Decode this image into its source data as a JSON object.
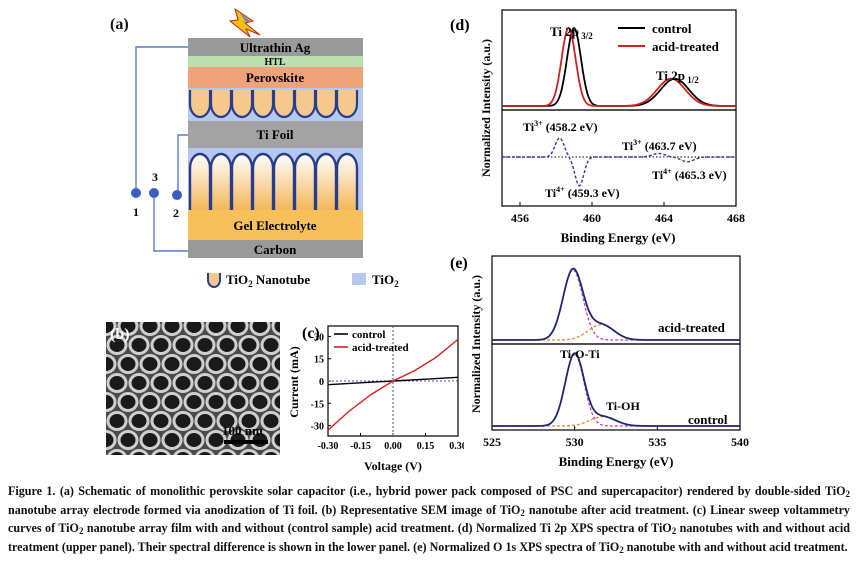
{
  "panel_a": {
    "label": "(a)",
    "layers": {
      "ag": "Ultrathin Ag",
      "htl": "HTL",
      "perovskite": "Perovskite",
      "ti_foil": "Ti Foil",
      "gel": "Gel Electrolyte",
      "carbon": "Carbon"
    },
    "terminals": [
      "1",
      "3",
      "2"
    ],
    "legend": {
      "nanotube": "TiO2 Nanotube",
      "tio2": "TiO2"
    }
  },
  "panel_b": {
    "label": "(b)",
    "scalebar": "100 nm"
  },
  "panel_c": {
    "label": "(c)"
  },
  "panel_d": {
    "label": "(d)"
  },
  "panel_e": {
    "label": "(e)"
  },
  "chart_data": [
    {
      "type": "line",
      "panel": "c",
      "xlabel": "Voltage (V)",
      "ylabel": "Current (mA)",
      "xlim": [
        -0.3,
        0.3
      ],
      "ylim": [
        -37,
        37
      ],
      "xticks": [
        "-0.30",
        "-0.15",
        "0.00",
        "0.15",
        "0.30"
      ],
      "yticks": [
        "30",
        "15",
        "0",
        "-15",
        "-30"
      ],
      "legend": [
        "control",
        "acid-treated"
      ],
      "series": [
        {
          "name": "control",
          "color": "#000000",
          "x": [
            -0.3,
            -0.15,
            0.0,
            0.15,
            0.3
          ],
          "y": [
            -2.5,
            -1.2,
            0,
            1.2,
            2.5
          ]
        },
        {
          "name": "acid-treated",
          "color": "#cc2222",
          "x": [
            -0.3,
            -0.2,
            -0.1,
            0.0,
            0.1,
            0.2,
            0.3
          ],
          "y": [
            -33,
            -20,
            -9,
            0,
            7,
            16,
            28
          ]
        }
      ]
    },
    {
      "type": "line",
      "panel": "d",
      "xlabel": "Binding Energy (eV)",
      "ylabel": "Normalized Intensity (a.u.)",
      "xlim": [
        455,
        468
      ],
      "xticks": [
        "456",
        "460",
        "464",
        "468"
      ],
      "legend": [
        "control",
        "acid-treated"
      ],
      "annotations": [
        "Ti 2p 3/2",
        "Ti 2p 1/2",
        "Ti3+ (458.2 eV)",
        "Ti4+ (459.3 eV)",
        "Ti3+ (463.7 eV)",
        "Ti4+ (465.3 eV)"
      ],
      "series": [
        {
          "name": "control",
          "color": "#000000",
          "peaks": [
            [
              459.0,
              1.0
            ],
            [
              464.6,
              0.35
            ]
          ]
        },
        {
          "name": "acid-treated",
          "color": "#cc2222",
          "peaks": [
            [
              458.7,
              1.0
            ],
            [
              464.4,
              0.35
            ]
          ]
        }
      ]
    },
    {
      "type": "line",
      "panel": "e",
      "xlabel": "Binding Energy (eV)",
      "ylabel": "Normalized Intensity (a.u.)",
      "xlim": [
        525,
        540
      ],
      "xticks": [
        "525",
        "530",
        "535",
        "540"
      ],
      "annotations": [
        "acid-treated",
        "Ti-O-Ti",
        "Ti-OH",
        "control"
      ]
    }
  ],
  "caption": {
    "fig": "Figure 1.",
    "text_html": "(a) Schematic of monolithic perovskite solar capacitor (i.e., hybrid power pack composed of PSC and supercapacitor) rendered by double-sided TiO<span class=\"s\">2</span> nanotube array electrode formed via anodization of Ti foil. (b) Representative SEM image of TiO<span class=\"s\">2</span> nanotube after acid treatment. (c) Linear sweep voltammetry curves of TiO<span class=\"s\">2</span> nanotube array film with and without (control sample) acid treatment. (d) Normalized Ti 2p XPS spectra of TiO<span class=\"s\">2</span> nanotubes with and without acid treatment (upper panel). Their spectral difference is shown in the lower panel. (e) Normalized O 1s XPS spectra of TiO<span class=\"s\">2</span> nanotube with and without acid treatment."
  }
}
